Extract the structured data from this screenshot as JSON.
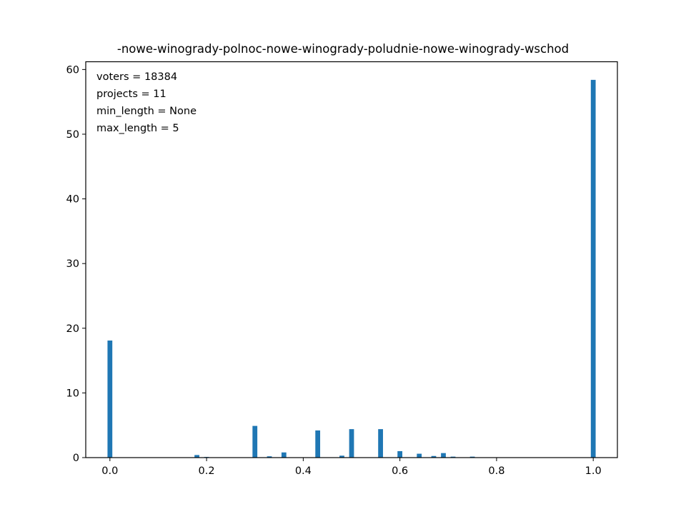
{
  "chart_data": {
    "type": "bar",
    "title": "-nowe-winogrady-polnoc-nowe-winogrady-poludnie-nowe-winogrady-wschod",
    "xlabel": "",
    "ylabel": "",
    "xlim": [
      -0.05,
      1.05
    ],
    "ylim": [
      0,
      61.2
    ],
    "x_ticks": [
      0.0,
      0.2,
      0.4,
      0.6,
      0.8,
      1.0
    ],
    "x_tick_labels": [
      "0.0",
      "0.2",
      "0.4",
      "0.6",
      "0.8",
      "1.0"
    ],
    "y_ticks": [
      0,
      10,
      20,
      30,
      40,
      50,
      60
    ],
    "y_tick_labels": [
      "0",
      "10",
      "20",
      "30",
      "40",
      "50",
      "60"
    ],
    "bar_width": 0.01,
    "color": "#1f77b4",
    "grid": false,
    "annotations": [
      "voters = 18384",
      "projects = 11",
      "min_length = None",
      "max_length = 5"
    ],
    "bars": [
      {
        "x": 0.0,
        "value": 18.1
      },
      {
        "x": 0.1,
        "value": 0.05
      },
      {
        "x": 0.14,
        "value": 0.05
      },
      {
        "x": 0.18,
        "value": 0.4
      },
      {
        "x": 0.2,
        "value": 0.1
      },
      {
        "x": 0.25,
        "value": 0.05
      },
      {
        "x": 0.3,
        "value": 4.9
      },
      {
        "x": 0.33,
        "value": 0.2
      },
      {
        "x": 0.36,
        "value": 0.8
      },
      {
        "x": 0.43,
        "value": 4.2
      },
      {
        "x": 0.48,
        "value": 0.3
      },
      {
        "x": 0.5,
        "value": 4.4
      },
      {
        "x": 0.56,
        "value": 4.4
      },
      {
        "x": 0.6,
        "value": 1.0
      },
      {
        "x": 0.64,
        "value": 0.6
      },
      {
        "x": 0.67,
        "value": 0.25
      },
      {
        "x": 0.69,
        "value": 0.7
      },
      {
        "x": 0.71,
        "value": 0.15
      },
      {
        "x": 0.75,
        "value": 0.15
      },
      {
        "x": 1.0,
        "value": 58.4
      }
    ]
  }
}
